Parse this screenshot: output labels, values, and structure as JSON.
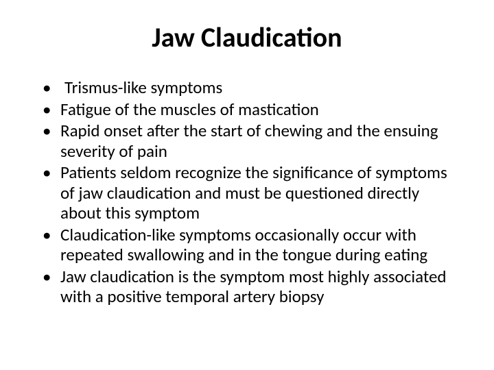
{
  "slide": {
    "title": "Jaw Claudication",
    "bullets": [
      "Trismus-like symptoms",
      "Fatigue of the muscles of mastication",
      "Rapid onset after the start of chewing and the ensuing severity of pain",
      "Patients seldom recognize the significance of symptoms of jaw claudication and must be questioned directly about this symptom",
      "Claudication-like symptoms occasionally occur with repeated swallowing and in the tongue during eating",
      "Jaw claudication is the symptom most highly associated with a positive temporal artery biopsy"
    ],
    "style": {
      "background_color": "#ffffff",
      "text_color": "#000000",
      "title_fontsize": 40,
      "title_fontweight": 700,
      "body_fontsize": 25,
      "font_family": "Calibri",
      "bullet_char": "•"
    }
  }
}
